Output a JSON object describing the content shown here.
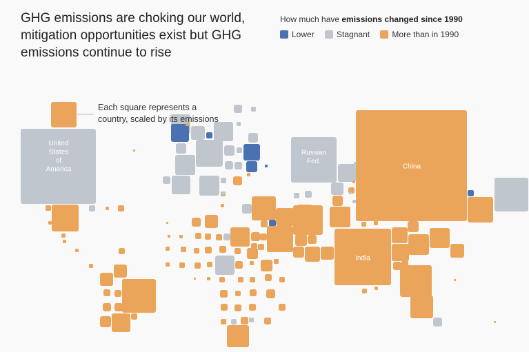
{
  "title": "GHG emissions are choking our world, mitigation opportunities exist but GHG emissions continue to rise",
  "legend": {
    "question_prefix": "How much have ",
    "question_bold": "emissions changed since 1990",
    "items": [
      {
        "key": "lower",
        "label": "Lower",
        "color": "#4a72b0"
      },
      {
        "key": "stagnant",
        "label": "Stagnant",
        "color": "#c0c6cd"
      },
      {
        "key": "more",
        "label": "More than in 1990",
        "color": "#eba55a"
      }
    ]
  },
  "note": "Each square represents a country, scaled by its emissions",
  "chart_data": {
    "type": "other",
    "encoding": "Each square represents a country, scaled by its emissions; color shows change in emissions since 1990",
    "labeled_countries": [
      {
        "name": "United States of America",
        "label_lines": [
          "United",
          "States",
          "of",
          "America"
        ],
        "status": "stagnant"
      },
      {
        "name": "Russian Fed.",
        "label_lines": [
          "Russian",
          "Fed."
        ],
        "status": "stagnant"
      },
      {
        "name": "China",
        "label_lines": [
          "China"
        ],
        "status": "more"
      },
      {
        "name": "India",
        "label_lines": [
          "India"
        ],
        "status": "more"
      }
    ]
  }
}
